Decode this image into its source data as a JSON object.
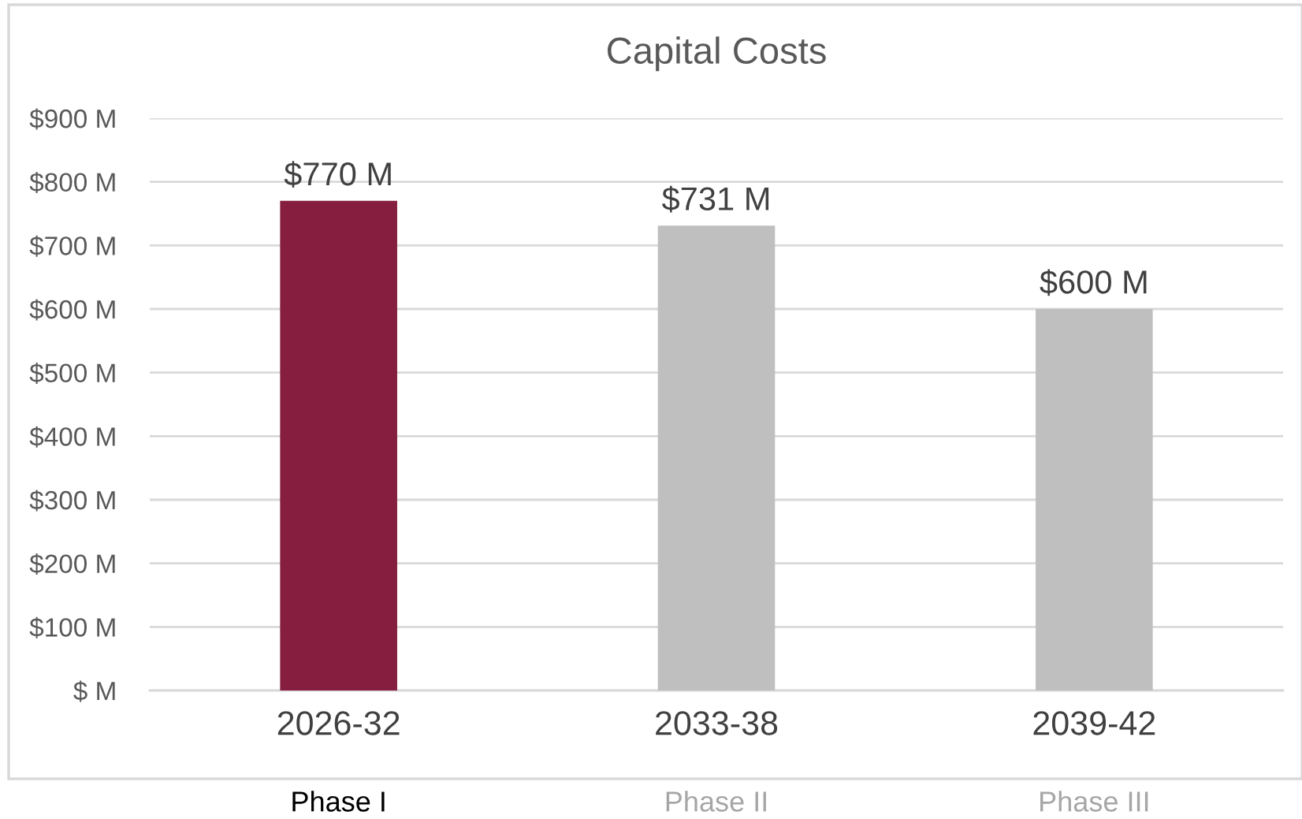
{
  "chart_data": {
    "type": "bar",
    "title": "Capital Costs",
    "categories": [
      "2026-32",
      "2033-38",
      "2039-42"
    ],
    "values": [
      770,
      731,
      600
    ],
    "colors": [
      "#861e3f",
      "#bfbfbf",
      "#bfbfbf"
    ],
    "value_labels": [
      "$770 M",
      "$731 M",
      "$600 M"
    ],
    "ylim": [
      0,
      900
    ],
    "yticks": [
      {
        "value": 0,
        "label": "$ M"
      },
      {
        "value": 100,
        "label": "$100 M"
      },
      {
        "value": 200,
        "label": "$200 M"
      },
      {
        "value": 300,
        "label": "$300 M"
      },
      {
        "value": 400,
        "label": "$400 M"
      },
      {
        "value": 500,
        "label": "$500 M"
      },
      {
        "value": 600,
        "label": "$600 M"
      },
      {
        "value": 700,
        "label": "$700 M"
      },
      {
        "value": 800,
        "label": "$800 M"
      },
      {
        "value": 900,
        "label": "$900 M"
      }
    ],
    "grid": "y",
    "annotations": [
      "Phase I",
      "Phase II",
      "Phase III"
    ]
  }
}
